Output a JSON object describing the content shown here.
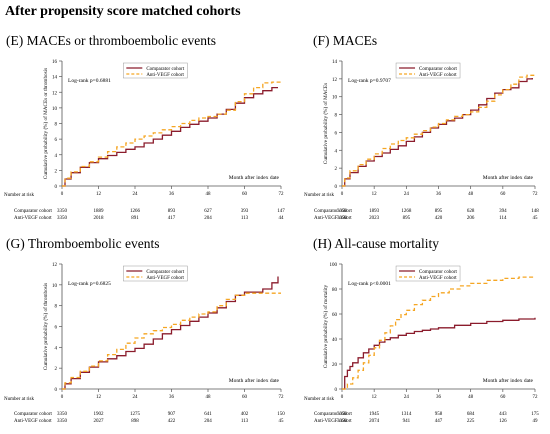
{
  "figure_title": "After propensity score matched cohorts",
  "colors": {
    "comparator": "#8b1c2c",
    "antivegf": "#f5a623",
    "axis": "#555555"
  },
  "chart_data": [
    {
      "id": "E",
      "type": "line",
      "title": "(E) MACEs or thromboembolic events",
      "xlabel": "Month after index date",
      "ylabel": "Cumulative probability (%) of MACEs or thrombosis",
      "xlim": [
        0,
        72
      ],
      "ylim": [
        0,
        16
      ],
      "xticks": [
        0,
        12,
        24,
        36,
        48,
        60,
        72
      ],
      "yticks": [
        0,
        2,
        4,
        6,
        8,
        10,
        12,
        14,
        16
      ],
      "annotation": "Log-rank p=0.6881",
      "legend_position": "top",
      "series": [
        {
          "name": "Comparator cohort",
          "style": "solid",
          "x": [
            0,
            1,
            3,
            6,
            9,
            12,
            15,
            18,
            21,
            24,
            27,
            30,
            33,
            36,
            39,
            42,
            45,
            48,
            51,
            54,
            57,
            60,
            63,
            66,
            69,
            71
          ],
          "y": [
            0,
            0.9,
            1.7,
            2.4,
            3.0,
            3.5,
            3.9,
            4.3,
            4.7,
            5.0,
            5.5,
            6.0,
            6.5,
            7.0,
            7.5,
            7.9,
            8.3,
            8.7,
            9.2,
            9.8,
            10.6,
            11.3,
            11.8,
            12.2,
            12.6,
            12.6
          ],
          "risk": [
            3350,
            1889,
            1266,
            893,
            627,
            393,
            147
          ]
        },
        {
          "name": "Anti-VEGF cohort",
          "style": "dashed",
          "x": [
            0,
            1,
            3,
            6,
            9,
            12,
            15,
            18,
            21,
            24,
            27,
            30,
            33,
            36,
            39,
            42,
            45,
            48,
            51,
            54,
            57,
            60,
            63,
            66,
            69,
            72
          ],
          "y": [
            0,
            1.0,
            1.8,
            2.5,
            3.1,
            3.7,
            4.4,
            5.0,
            5.5,
            6.0,
            6.4,
            6.8,
            7.2,
            7.6,
            8.0,
            8.4,
            8.7,
            8.9,
            9.2,
            9.7,
            10.8,
            11.8,
            12.6,
            13.2,
            13.3,
            13.3
          ],
          "risk": [
            3350,
            2018,
            891,
            417,
            204,
            113,
            44
          ]
        }
      ]
    },
    {
      "id": "F",
      "type": "line",
      "title": "(F) MACEs",
      "xlabel": "Month after index date",
      "ylabel": "Cumulative probability (%) of MACEs",
      "xlim": [
        0,
        72
      ],
      "ylim": [
        0,
        14
      ],
      "xticks": [
        0,
        12,
        24,
        36,
        48,
        60,
        72
      ],
      "yticks": [
        0,
        2,
        4,
        6,
        8,
        10,
        12,
        14
      ],
      "annotation": "Log-rank p=0.9707",
      "legend_position": "top",
      "series": [
        {
          "name": "Comparator cohort",
          "style": "solid",
          "x": [
            0,
            1,
            3,
            6,
            9,
            12,
            15,
            18,
            21,
            24,
            27,
            30,
            33,
            36,
            39,
            42,
            45,
            48,
            51,
            54,
            57,
            60,
            63,
            66,
            69,
            71
          ],
          "y": [
            0,
            0.8,
            1.5,
            2.2,
            2.8,
            3.3,
            3.7,
            4.1,
            4.5,
            5.0,
            5.5,
            6.0,
            6.5,
            6.9,
            7.3,
            7.6,
            8.0,
            8.5,
            9.1,
            9.8,
            10.4,
            10.8,
            11.0,
            11.7,
            12.0,
            12.1
          ],
          "risk": [
            3350,
            1893,
            1268,
            895,
            628,
            394,
            148
          ]
        },
        {
          "name": "Anti-VEGF cohort",
          "style": "dashed",
          "x": [
            0,
            1,
            3,
            6,
            9,
            12,
            15,
            18,
            21,
            24,
            27,
            30,
            33,
            36,
            39,
            42,
            45,
            48,
            51,
            54,
            57,
            60,
            63,
            66,
            69,
            72
          ],
          "y": [
            0,
            0.9,
            1.7,
            2.4,
            3.0,
            3.6,
            4.2,
            4.7,
            5.1,
            5.4,
            5.8,
            6.2,
            6.6,
            7.0,
            7.4,
            7.8,
            8.0,
            8.3,
            8.8,
            9.5,
            10.2,
            10.8,
            11.4,
            12.2,
            12.4,
            12.4
          ],
          "risk": [
            3350,
            2023,
            895,
            420,
            206,
            114,
            45
          ]
        }
      ]
    },
    {
      "id": "G",
      "type": "line",
      "title": "(G) Thromboembolic events",
      "xlabel": "Month after index date",
      "ylabel": "Cumulative probability (%) of thrombosis",
      "xlim": [
        0,
        72
      ],
      "ylim": [
        0,
        12
      ],
      "xticks": [
        0,
        12,
        24,
        36,
        48,
        60,
        72
      ],
      "yticks": [
        0,
        2,
        4,
        6,
        8,
        10,
        12
      ],
      "annotation": "Log-rank p=0.6825",
      "legend_position": "top",
      "series": [
        {
          "name": "Comparator cohort",
          "style": "solid",
          "x": [
            0,
            1,
            3,
            6,
            9,
            12,
            15,
            18,
            21,
            24,
            27,
            30,
            33,
            36,
            39,
            42,
            45,
            48,
            51,
            54,
            57,
            60,
            63,
            66,
            69,
            71
          ],
          "y": [
            0,
            0.5,
            1.0,
            1.6,
            2.1,
            2.6,
            2.9,
            3.2,
            3.6,
            3.9,
            4.3,
            4.8,
            5.3,
            5.7,
            6.1,
            6.5,
            6.9,
            7.3,
            7.8,
            8.4,
            9.0,
            9.3,
            9.3,
            9.6,
            10.2,
            10.8
          ],
          "risk": [
            3350,
            1902,
            1275,
            907,
            641,
            402,
            150
          ]
        },
        {
          "name": "Anti-VEGF cohort",
          "style": "dashed",
          "x": [
            0,
            1,
            3,
            6,
            9,
            12,
            15,
            18,
            21,
            24,
            27,
            30,
            33,
            36,
            39,
            42,
            45,
            48,
            51,
            54,
            57,
            60,
            63,
            66,
            69,
            72
          ],
          "y": [
            0,
            0.6,
            1.1,
            1.7,
            2.2,
            2.7,
            3.3,
            3.8,
            4.4,
            4.9,
            5.3,
            5.6,
            5.9,
            6.2,
            6.6,
            6.9,
            7.2,
            7.4,
            8.0,
            8.6,
            9.0,
            9.2,
            9.2,
            9.2,
            9.2,
            9.2
          ],
          "risk": [
            3350,
            2027,
            898,
            422,
            204,
            113,
            45
          ]
        }
      ]
    },
    {
      "id": "H",
      "type": "line",
      "title": "(H) All-cause mortality",
      "xlabel": "Month after index date",
      "ylabel": "Cumulative probability (%) of mortality",
      "xlim": [
        0,
        72
      ],
      "ylim": [
        0,
        100
      ],
      "xticks": [
        0,
        12,
        24,
        36,
        48,
        60,
        72
      ],
      "yticks": [
        0,
        20,
        40,
        60,
        80,
        100
      ],
      "annotation": "Log-rank p<0.0001",
      "legend_position": "top",
      "series": [
        {
          "name": "Comparator cohort",
          "style": "solid",
          "x": [
            0,
            1,
            2,
            3,
            4,
            6,
            8,
            10,
            12,
            14,
            16,
            18,
            21,
            24,
            27,
            30,
            33,
            36,
            42,
            48,
            54,
            60,
            66,
            72
          ],
          "y": [
            0,
            10,
            15,
            18,
            21,
            25,
            29,
            32,
            35,
            37.5,
            39.5,
            41,
            43,
            44.5,
            46,
            47,
            48,
            49,
            51,
            52.5,
            54,
            55,
            56,
            57
          ],
          "risk": [
            3350,
            1945,
            1314,
            958,
            684,
            443,
            175
          ]
        },
        {
          "name": "Anti-VEGF cohort",
          "style": "dashed",
          "x": [
            0,
            2,
            4,
            6,
            8,
            10,
            12,
            14,
            16,
            18,
            20,
            22,
            24,
            27,
            30,
            33,
            36,
            40,
            44,
            48,
            54,
            60,
            66,
            72
          ],
          "y": [
            0,
            4,
            9,
            15,
            21,
            27,
            33,
            39,
            45,
            50.5,
            55.5,
            59.5,
            63,
            67.5,
            71,
            74,
            77,
            80,
            82.5,
            84.5,
            87,
            88.5,
            89.5,
            90
          ],
          "risk": [
            3350,
            2074,
            941,
            447,
            225,
            126,
            49
          ]
        }
      ]
    }
  ],
  "risk_table": {
    "label": "Number at risk",
    "row_labels": [
      "Comparator cohort",
      "Anti-VEGF cohort"
    ]
  }
}
